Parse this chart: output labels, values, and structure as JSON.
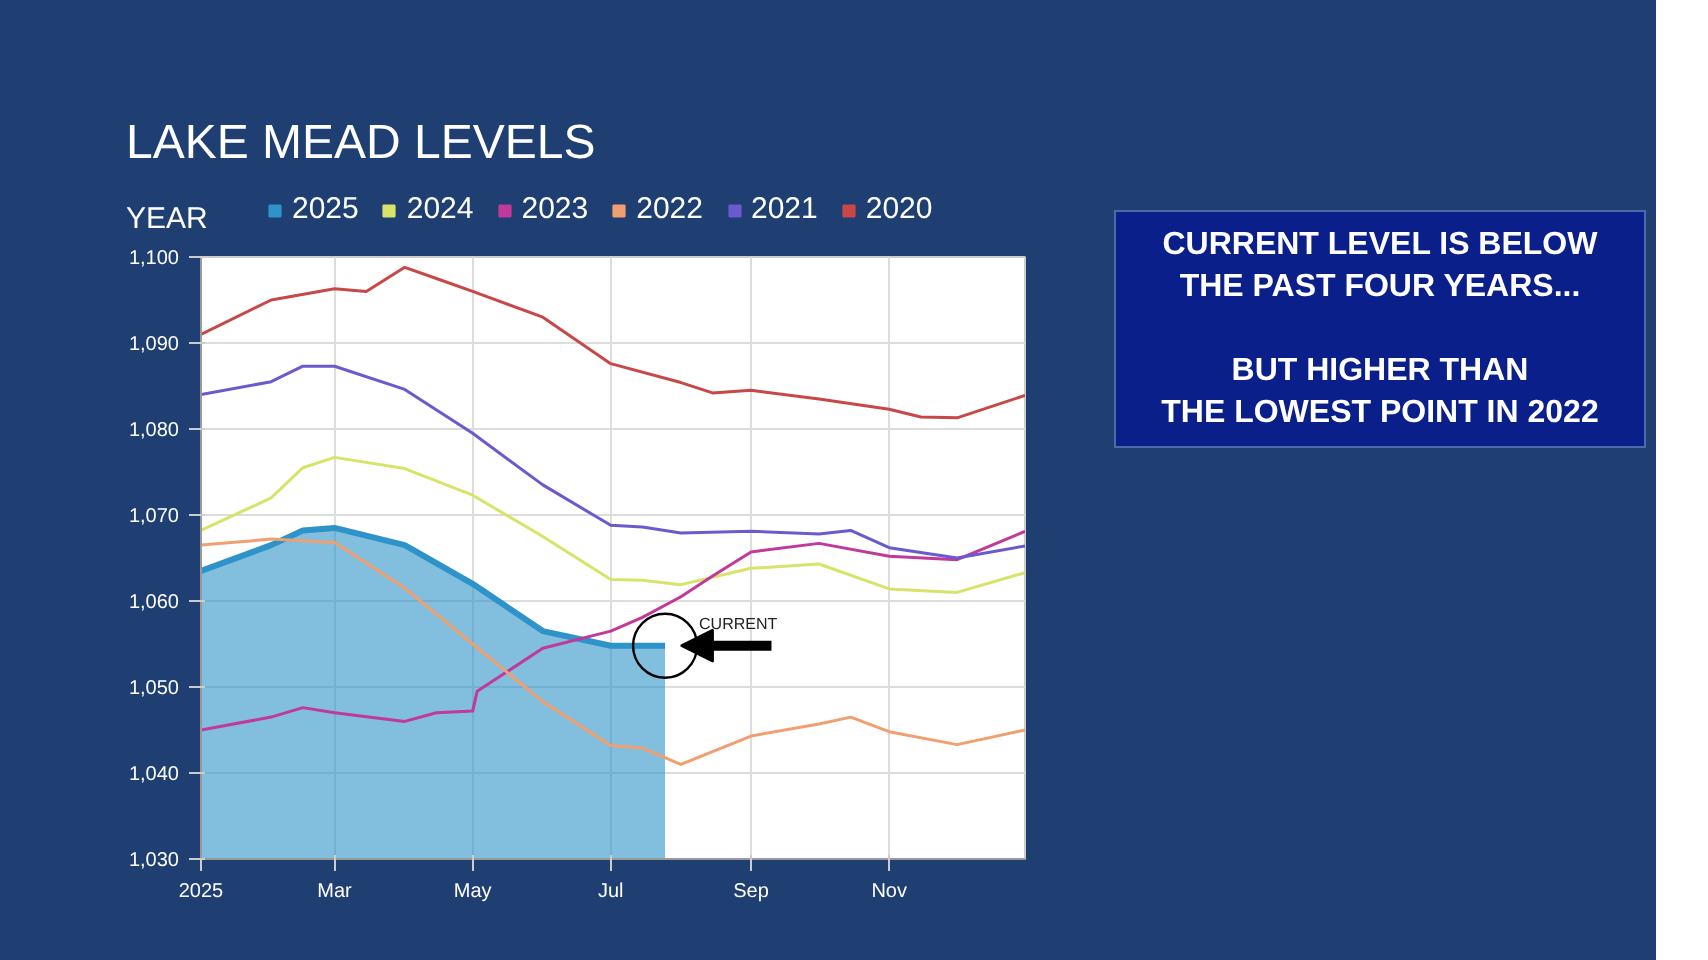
{
  "chart_data": {
    "type": "line",
    "title": "LAKE MEAD LEVELS",
    "legend_title": "YEAR",
    "legend": "top",
    "annotations": [
      {
        "text": "CURRENT",
        "x": "2025-07-25",
        "y": 1054.8
      },
      "CURRENT LEVEL IS BELOW\nTHE PAST FOUR YEARS...\n\nBUT HIGHER THAN\nTHE LOWEST POINT IN 2022"
    ],
    "xlim": [
      "2025-01-01",
      "2025-12-31"
    ],
    "xticks": [
      {
        "value": "2025-01-01",
        "label": "2025"
      },
      {
        "value": "2025-03-01",
        "label": "Mar"
      },
      {
        "value": "2025-05-01",
        "label": "May"
      },
      {
        "value": "2025-07-01",
        "label": "Jul"
      },
      {
        "value": "2025-09-01",
        "label": "Sep"
      },
      {
        "value": "2025-11-01",
        "label": "Nov"
      }
    ],
    "ylim": [
      1030,
      1100
    ],
    "yticks": [
      {
        "value": 1030,
        "label": "1,030"
      },
      {
        "value": 1040,
        "label": "1,040"
      },
      {
        "value": 1050,
        "label": "1,050"
      },
      {
        "value": 1060,
        "label": "1,060"
      },
      {
        "value": 1070,
        "label": "1,070"
      },
      {
        "value": 1080,
        "label": "1,080"
      },
      {
        "value": 1090,
        "label": "1,090"
      },
      {
        "value": 1100,
        "label": "1,100"
      }
    ],
    "grid": true,
    "series": [
      {
        "name": "2025",
        "type": "area",
        "color": "#2e93c8",
        "x": [
          "2025-01-01",
          "2025-02-01",
          "2025-02-15",
          "2025-03-01",
          "2025-04-01",
          "2025-05-01",
          "2025-06-01",
          "2025-07-01",
          "2025-07-25"
        ],
        "values": [
          1063.5,
          1066.5,
          1068.2,
          1068.5,
          1066.5,
          1062,
          1056.5,
          1054.8,
          1054.8
        ]
      },
      {
        "name": "2024",
        "color": "#d8e36a",
        "x": [
          "2025-01-01",
          "2025-02-01",
          "2025-02-15",
          "2025-03-01",
          "2025-04-01",
          "2025-05-01",
          "2025-06-01",
          "2025-07-01",
          "2025-07-15",
          "2025-08-01",
          "2025-09-01",
          "2025-10-01",
          "2025-11-01",
          "2025-12-01",
          "2025-12-31"
        ],
        "values": [
          1068.2,
          1072,
          1075.5,
          1076.7,
          1075.4,
          1072.3,
          1067.5,
          1062.5,
          1062.4,
          1061.9,
          1063.8,
          1064.3,
          1061.4,
          1061,
          1063.3
        ]
      },
      {
        "name": "2023",
        "color": "#c0399b",
        "x": [
          "2025-01-01",
          "2025-02-01",
          "2025-02-15",
          "2025-03-01",
          "2025-04-01",
          "2025-04-15",
          "2025-05-01",
          "2025-05-03",
          "2025-06-01",
          "2025-07-01",
          "2025-07-15",
          "2025-08-01",
          "2025-08-15",
          "2025-09-01",
          "2025-10-01",
          "2025-11-01",
          "2025-12-01",
          "2025-12-31"
        ],
        "values": [
          1045,
          1046.5,
          1047.6,
          1047,
          1046,
          1047,
          1047.2,
          1049.5,
          1054.5,
          1056.5,
          1058.1,
          1060.5,
          1062.9,
          1065.7,
          1066.7,
          1065.2,
          1064.8,
          1068.1
        ]
      },
      {
        "name": "2022",
        "color": "#f0a070",
        "x": [
          "2025-01-01",
          "2025-02-01",
          "2025-03-01",
          "2025-04-01",
          "2025-05-01",
          "2025-06-01",
          "2025-07-01",
          "2025-07-15",
          "2025-08-01",
          "2025-09-01",
          "2025-10-01",
          "2025-10-15",
          "2025-11-01",
          "2025-12-01",
          "2025-12-31"
        ],
        "values": [
          1066.5,
          1067.2,
          1066.8,
          1061.5,
          1055,
          1048.3,
          1043.2,
          1042.9,
          1041,
          1044.3,
          1045.7,
          1046.5,
          1044.8,
          1043.3,
          1045
        ]
      },
      {
        "name": "2021",
        "color": "#6a5acd",
        "x": [
          "2025-01-01",
          "2025-02-01",
          "2025-02-15",
          "2025-03-01",
          "2025-04-01",
          "2025-05-01",
          "2025-06-01",
          "2025-07-01",
          "2025-07-15",
          "2025-08-01",
          "2025-09-01",
          "2025-10-01",
          "2025-10-15",
          "2025-11-01",
          "2025-12-01",
          "2025-12-31"
        ],
        "values": [
          1084,
          1085.5,
          1087.3,
          1087.3,
          1084.6,
          1079.5,
          1073.5,
          1068.8,
          1068.6,
          1067.9,
          1068.1,
          1067.8,
          1068.2,
          1066.2,
          1065,
          1066.4
        ]
      },
      {
        "name": "2020",
        "color": "#c84848",
        "x": [
          "2025-01-01",
          "2025-02-01",
          "2025-03-01",
          "2025-03-15",
          "2025-04-01",
          "2025-04-15",
          "2025-05-01",
          "2025-06-01",
          "2025-07-01",
          "2025-08-01",
          "2025-08-15",
          "2025-09-01",
          "2025-10-01",
          "2025-11-01",
          "2025-11-15",
          "2025-12-01",
          "2025-12-31"
        ],
        "values": [
          1091,
          1095,
          1096.3,
          1096,
          1098.8,
          1097.5,
          1096,
          1093,
          1087.6,
          1085.4,
          1084.2,
          1084.5,
          1083.5,
          1082.3,
          1081.4,
          1081.3,
          1083.9
        ]
      }
    ]
  }
}
